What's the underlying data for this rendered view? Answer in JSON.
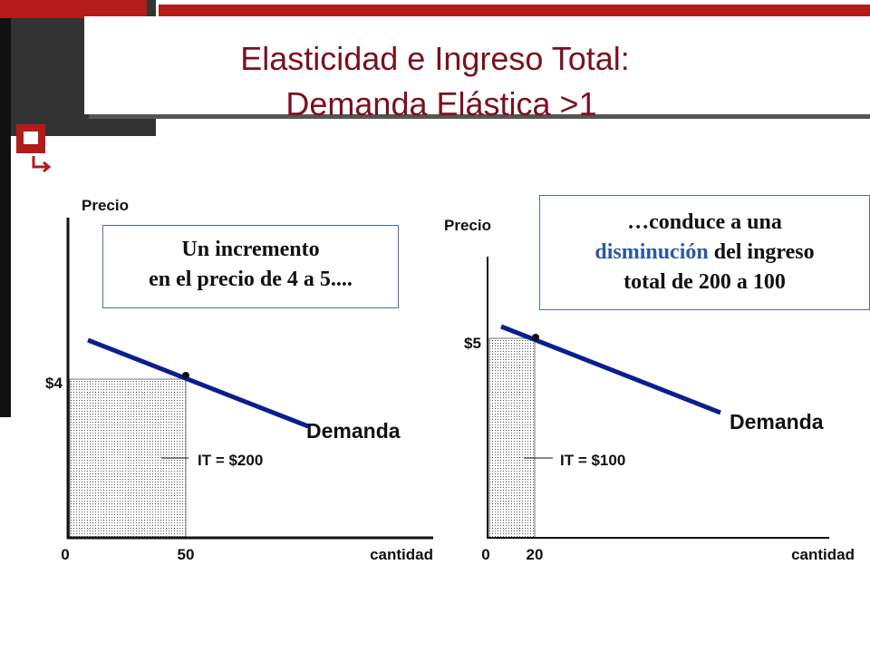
{
  "title": [
    "Elasticidad e Ingreso Total:",
    "Demanda Elástica >1"
  ],
  "left": {
    "y_label": "Precio",
    "price": "$4",
    "x_label": "cantidad",
    "origin": "0",
    "quantity": "50",
    "curve": "Demanda",
    "revenue": "IT = $200",
    "note": [
      "Un incremento",
      "en el precio de 4 a 5...."
    ]
  },
  "right": {
    "y_label": "Precio",
    "price": "$5",
    "x_label": "cantidad",
    "origin": "0",
    "quantity": "20",
    "curve": "Demanda",
    "revenue": "IT = $100",
    "note": {
      "line1": "…conduce a una",
      "highlight": "disminución",
      "line2_rest": "del ingreso",
      "line3": "total de 200 a 100"
    }
  }
}
